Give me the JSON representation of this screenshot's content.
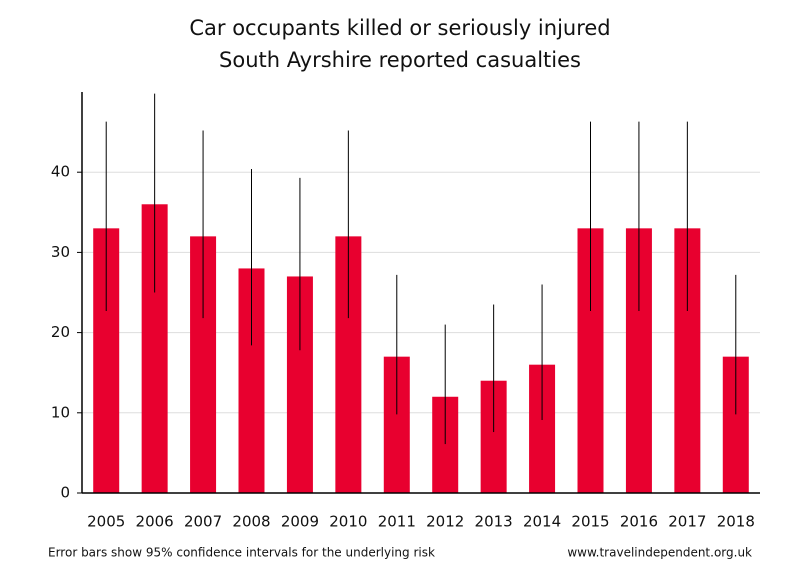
{
  "chart_data": {
    "type": "bar",
    "title": "Car occupants killed or seriously injured",
    "subtitle": "South Ayrshire reported casualties",
    "categories": [
      "2005",
      "2006",
      "2007",
      "2008",
      "2009",
      "2010",
      "2011",
      "2012",
      "2013",
      "2014",
      "2015",
      "2016",
      "2017",
      "2018"
    ],
    "values": [
      33,
      36,
      32,
      28,
      27,
      32,
      17,
      12,
      14,
      16,
      33,
      33,
      33,
      17
    ],
    "lower": [
      22.7,
      25,
      21.8,
      18.4,
      17.8,
      21.8,
      9.8,
      6.1,
      7.6,
      9.1,
      22.7,
      22.7,
      22.7,
      9.8
    ],
    "upper": [
      46.3,
      49.8,
      45.2,
      40.4,
      39.3,
      45.2,
      27.2,
      21,
      23.5,
      26,
      46.3,
      46.3,
      46.3,
      27.2
    ],
    "color": "#e8002f",
    "ylim": [
      0,
      50
    ],
    "yticks": [
      0,
      10,
      20,
      30,
      40
    ],
    "grid": true,
    "note": "Error bars show 95% confidence intervals for the underlying risk",
    "source": "www.travelindependent.org.uk"
  }
}
